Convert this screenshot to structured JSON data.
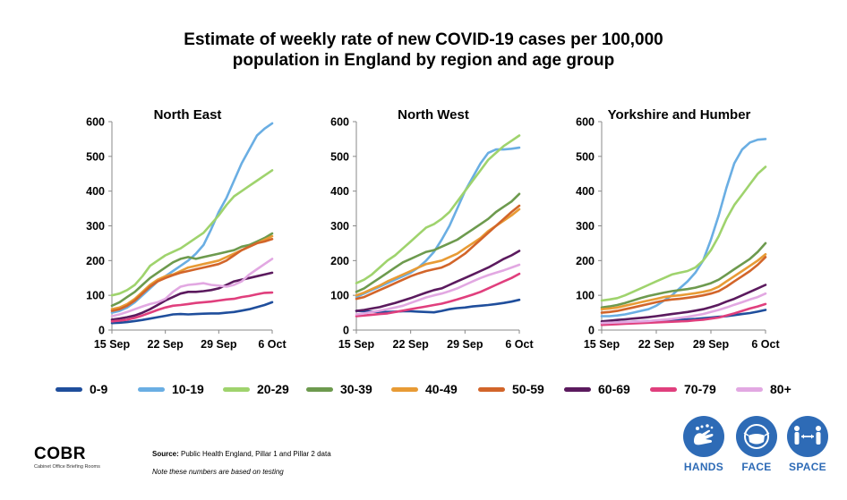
{
  "title": {
    "line1": "Estimate of weekly rate of new COVID-19 cases per 100,000",
    "line2": "population in England by region and age group"
  },
  "series_colors": {
    "0-9": "#1f4e9c",
    "10-19": "#6aaee3",
    "20-29": "#9fd36d",
    "30-39": "#6d9a4e",
    "40-49": "#e89b35",
    "50-59": "#d2652a",
    "60-69": "#5b1a5e",
    "70-79": "#e03f7d",
    "80+": "#e2a8e2"
  },
  "legend": [
    "0-9",
    "10-19",
    "20-29",
    "30-39",
    "40-49",
    "50-59",
    "60-69",
    "70-79",
    "80+"
  ],
  "chart_data": [
    {
      "type": "line",
      "title": "North East",
      "x": [
        "15 Sep",
        "16 Sep",
        "17 Sep",
        "18 Sep",
        "19 Sep",
        "20 Sep",
        "21 Sep",
        "22 Sep",
        "23 Sep",
        "24 Sep",
        "25 Sep",
        "26 Sep",
        "27 Sep",
        "28 Sep",
        "29 Sep",
        "30 Sep",
        "1 Oct",
        "2 Oct",
        "3 Oct",
        "4 Oct",
        "5 Oct",
        "6 Oct"
      ],
      "xticks": [
        "15 Sep",
        "22 Sep",
        "29 Sep",
        "6 Oct"
      ],
      "ylim": [
        0,
        600
      ],
      "yticks": [
        0,
        100,
        200,
        300,
        400,
        500,
        600
      ],
      "series": [
        {
          "name": "0-9",
          "values": [
            20,
            21,
            23,
            26,
            29,
            33,
            37,
            41,
            45,
            46,
            45,
            46,
            47,
            48,
            48,
            50,
            52,
            56,
            60,
            66,
            72,
            80
          ]
        },
        {
          "name": "10-19",
          "values": [
            50,
            55,
            65,
            80,
            100,
            120,
            140,
            155,
            170,
            185,
            200,
            220,
            245,
            290,
            340,
            380,
            430,
            480,
            520,
            560,
            580,
            595
          ]
        },
        {
          "name": "20-29",
          "values": [
            100,
            105,
            115,
            130,
            155,
            185,
            200,
            215,
            225,
            235,
            250,
            265,
            280,
            305,
            330,
            360,
            385,
            400,
            415,
            430,
            445,
            460
          ]
        },
        {
          "name": "30-39",
          "values": [
            70,
            80,
            95,
            110,
            130,
            150,
            165,
            180,
            195,
            205,
            210,
            205,
            210,
            215,
            220,
            225,
            230,
            240,
            245,
            255,
            265,
            278
          ]
        },
        {
          "name": "40-49",
          "values": [
            60,
            65,
            75,
            90,
            110,
            130,
            145,
            155,
            160,
            170,
            180,
            185,
            190,
            195,
            200,
            210,
            220,
            230,
            240,
            250,
            260,
            270
          ]
        },
        {
          "name": "50-59",
          "values": [
            55,
            60,
            70,
            85,
            105,
            125,
            140,
            150,
            158,
            165,
            170,
            175,
            180,
            185,
            190,
            200,
            215,
            230,
            240,
            250,
            255,
            262
          ]
        },
        {
          "name": "60-69",
          "values": [
            30,
            33,
            37,
            42,
            50,
            60,
            72,
            85,
            95,
            105,
            110,
            110,
            112,
            115,
            120,
            130,
            140,
            145,
            150,
            155,
            160,
            165
          ]
        },
        {
          "name": "70-79",
          "values": [
            25,
            27,
            30,
            35,
            42,
            50,
            58,
            65,
            70,
            72,
            75,
            78,
            80,
            82,
            85,
            88,
            90,
            95,
            98,
            103,
            107,
            108
          ]
        },
        {
          "name": "80+",
          "values": [
            40,
            45,
            52,
            60,
            68,
            75,
            80,
            90,
            110,
            125,
            130,
            132,
            135,
            130,
            128,
            125,
            130,
            140,
            160,
            175,
            190,
            205
          ]
        }
      ]
    },
    {
      "type": "line",
      "title": "North West",
      "x": [
        "15 Sep",
        "16 Sep",
        "17 Sep",
        "18 Sep",
        "19 Sep",
        "20 Sep",
        "21 Sep",
        "22 Sep",
        "23 Sep",
        "24 Sep",
        "25 Sep",
        "26 Sep",
        "27 Sep",
        "28 Sep",
        "29 Sep",
        "30 Sep",
        "1 Oct",
        "2 Oct",
        "3 Oct",
        "4 Oct",
        "5 Oct",
        "6 Oct"
      ],
      "xticks": [
        "15 Sep",
        "22 Sep",
        "29 Sep",
        "6 Oct"
      ],
      "ylim": [
        0,
        600
      ],
      "yticks": [
        0,
        100,
        200,
        300,
        400,
        500,
        600
      ],
      "series": [
        {
          "name": "0-9",
          "values": [
            55,
            54,
            53,
            52,
            52,
            53,
            54,
            54,
            53,
            52,
            51,
            55,
            60,
            63,
            65,
            68,
            70,
            72,
            75,
            78,
            82,
            87
          ]
        },
        {
          "name": "10-19",
          "values": [
            95,
            105,
            115,
            125,
            135,
            145,
            155,
            165,
            180,
            200,
            225,
            260,
            300,
            350,
            400,
            440,
            480,
            510,
            520,
            520,
            522,
            525
          ]
        },
        {
          "name": "20-29",
          "values": [
            135,
            145,
            160,
            180,
            200,
            215,
            235,
            255,
            275,
            295,
            305,
            320,
            340,
            370,
            400,
            430,
            460,
            490,
            510,
            530,
            545,
            560
          ]
        },
        {
          "name": "30-39",
          "values": [
            110,
            120,
            135,
            150,
            165,
            180,
            195,
            205,
            215,
            225,
            230,
            240,
            250,
            260,
            275,
            290,
            305,
            320,
            340,
            355,
            370,
            392
          ]
        },
        {
          "name": "40-49",
          "values": [
            100,
            108,
            118,
            128,
            140,
            150,
            160,
            170,
            180,
            190,
            195,
            200,
            210,
            220,
            235,
            250,
            265,
            285,
            300,
            315,
            330,
            348
          ]
        },
        {
          "name": "50-59",
          "values": [
            90,
            95,
            105,
            115,
            125,
            135,
            145,
            155,
            163,
            170,
            175,
            180,
            190,
            205,
            220,
            240,
            260,
            280,
            300,
            320,
            340,
            358
          ]
        },
        {
          "name": "60-69",
          "values": [
            55,
            58,
            62,
            66,
            72,
            78,
            85,
            92,
            100,
            108,
            115,
            120,
            130,
            140,
            150,
            160,
            170,
            180,
            192,
            205,
            215,
            228
          ]
        },
        {
          "name": "70-79",
          "values": [
            40,
            42,
            44,
            46,
            48,
            52,
            56,
            60,
            64,
            68,
            72,
            76,
            82,
            88,
            95,
            102,
            110,
            120,
            130,
            140,
            150,
            162
          ]
        },
        {
          "name": "80+",
          "values": [
            45,
            48,
            52,
            56,
            60,
            65,
            70,
            78,
            86,
            94,
            100,
            105,
            112,
            120,
            130,
            140,
            150,
            158,
            165,
            172,
            180,
            188
          ]
        }
      ]
    },
    {
      "type": "line",
      "title": "Yorkshire and Humber",
      "x": [
        "15 Sep",
        "16 Sep",
        "17 Sep",
        "18 Sep",
        "19 Sep",
        "20 Sep",
        "21 Sep",
        "22 Sep",
        "23 Sep",
        "24 Sep",
        "25 Sep",
        "26 Sep",
        "27 Sep",
        "28 Sep",
        "29 Sep",
        "30 Sep",
        "1 Oct",
        "2 Oct",
        "3 Oct",
        "4 Oct",
        "5 Oct",
        "6 Oct"
      ],
      "xticks": [
        "15 Sep",
        "22 Sep",
        "29 Sep",
        "6 Oct"
      ],
      "ylim": [
        0,
        600
      ],
      "yticks": [
        0,
        100,
        200,
        300,
        400,
        500,
        600
      ],
      "series": [
        {
          "name": "0-9",
          "values": [
            20,
            21,
            22,
            23,
            24,
            25,
            26,
            27,
            28,
            29,
            30,
            31,
            32,
            34,
            36,
            38,
            40,
            43,
            46,
            49,
            53,
            58
          ]
        },
        {
          "name": "10-19",
          "values": [
            40,
            40,
            42,
            45,
            50,
            55,
            60,
            70,
            85,
            100,
            120,
            140,
            165,
            200,
            260,
            330,
            410,
            480,
            520,
            540,
            548,
            550
          ]
        },
        {
          "name": "20-29",
          "values": [
            85,
            88,
            92,
            100,
            110,
            120,
            130,
            140,
            150,
            160,
            165,
            170,
            180,
            200,
            230,
            270,
            320,
            360,
            390,
            420,
            450,
            470
          ]
        },
        {
          "name": "30-39",
          "values": [
            65,
            68,
            72,
            78,
            85,
            92,
            98,
            103,
            108,
            112,
            115,
            118,
            122,
            128,
            135,
            145,
            160,
            175,
            190,
            205,
            225,
            250
          ]
        },
        {
          "name": "40-49",
          "values": [
            60,
            62,
            65,
            70,
            75,
            80,
            85,
            90,
            95,
            98,
            100,
            103,
            106,
            110,
            115,
            125,
            140,
            155,
            170,
            185,
            200,
            218
          ]
        },
        {
          "name": "50-59",
          "values": [
            50,
            52,
            55,
            60,
            65,
            70,
            75,
            80,
            85,
            88,
            90,
            93,
            96,
            100,
            105,
            112,
            125,
            140,
            155,
            170,
            188,
            210
          ]
        },
        {
          "name": "60-69",
          "values": [
            25,
            27,
            29,
            31,
            33,
            35,
            37,
            40,
            43,
            46,
            49,
            52,
            56,
            60,
            66,
            73,
            82,
            90,
            100,
            110,
            120,
            130
          ]
        },
        {
          "name": "70-79",
          "values": [
            15,
            16,
            17,
            18,
            19,
            20,
            21,
            22,
            23,
            24,
            25,
            26,
            28,
            30,
            33,
            36,
            42,
            48,
            55,
            62,
            68,
            75
          ]
        },
        {
          "name": "80+",
          "values": [
            20,
            21,
            22,
            23,
            24,
            25,
            26,
            28,
            30,
            32,
            35,
            38,
            42,
            46,
            52,
            58,
            65,
            73,
            80,
            88,
            95,
            105
          ]
        }
      ]
    }
  ],
  "footer": {
    "logo_mark": "COBR",
    "logo_sub": "Cabinet Office Briefing Rooms",
    "source_label": "Source:",
    "source_text": " Public Health England, Pillar 1 and Pillar 2 data",
    "note": "Note these numbers are based on testing"
  },
  "badges": [
    {
      "label": "HANDS",
      "icon": "hands-icon"
    },
    {
      "label": "FACE",
      "icon": "face-mask-icon"
    },
    {
      "label": "SPACE",
      "icon": "distance-icon"
    }
  ]
}
